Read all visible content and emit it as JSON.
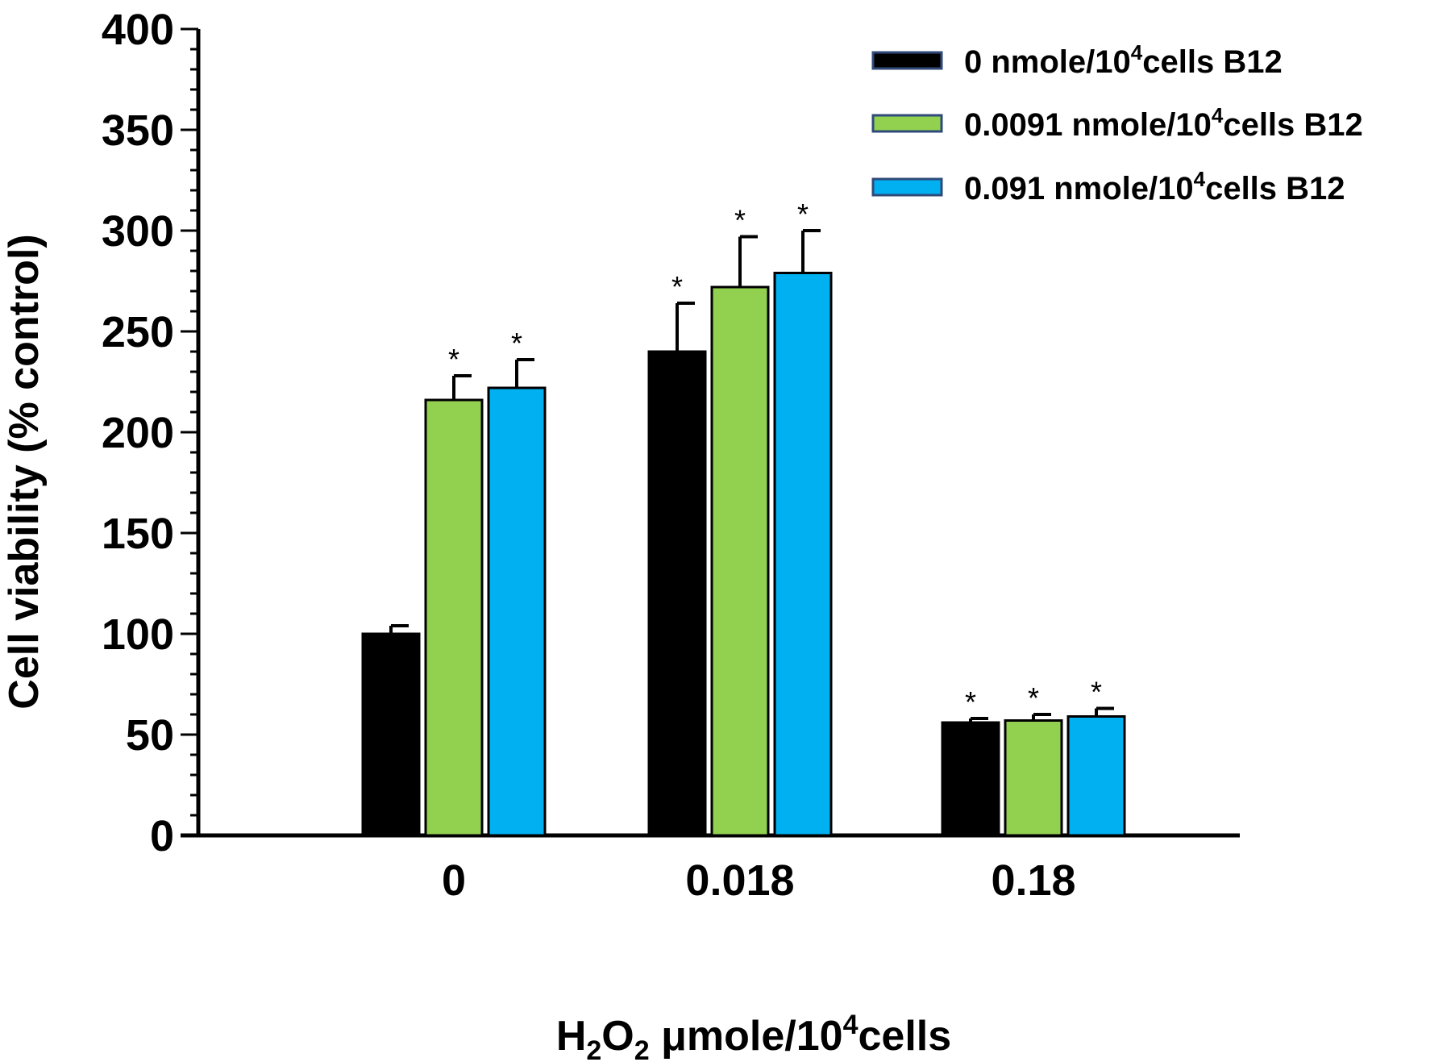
{
  "chart_data": {
    "type": "bar",
    "title": "",
    "ylabel": "Cell viability (% control)",
    "xlabel_parts": {
      "h": "H",
      "sub1": "2",
      "o": "O",
      "sub2": "2",
      "unit_pre": " μmole/10",
      "sup": "4",
      "unit_post": "cells"
    },
    "categories": [
      "0",
      "0.018",
      "0.18"
    ],
    "ylim": [
      0,
      400
    ],
    "yticks": [
      0,
      50,
      100,
      150,
      200,
      250,
      300,
      350,
      400
    ],
    "grid": false,
    "legend_position": "top-right",
    "series": [
      {
        "name_pre": "0 nmole/10",
        "name_sup": "4",
        "name_post": "cells B12",
        "color": "#000000",
        "values": [
          100,
          240,
          56
        ],
        "errors": [
          4,
          24,
          2
        ],
        "significance": [
          "",
          "*",
          "*"
        ]
      },
      {
        "name_pre": "0.0091 nmole/10",
        "name_sup": "4",
        "name_post": "cells B12",
        "color": "#92d050",
        "values": [
          216,
          272,
          57
        ],
        "errors": [
          12,
          25,
          3
        ],
        "significance": [
          "*",
          "*",
          "*"
        ]
      },
      {
        "name_pre": "0.091 nmole/10",
        "name_sup": "4",
        "name_post": "cells B12",
        "color": "#00b0f0",
        "values": [
          222,
          279,
          59
        ],
        "errors": [
          14,
          21,
          4
        ],
        "significance": [
          "*",
          "*",
          "*"
        ]
      }
    ]
  }
}
